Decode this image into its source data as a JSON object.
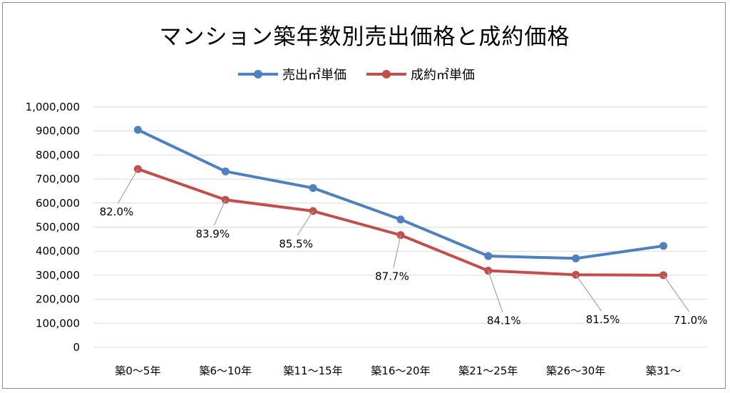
{
  "chart_data": {
    "type": "line",
    "title": "マンション築年数別売出価格と成約価格",
    "xlabel": "",
    "ylabel": "",
    "ylim": [
      0,
      1000000
    ],
    "yticks": [
      "0",
      "100,000",
      "200,000",
      "300,000",
      "400,000",
      "500,000",
      "600,000",
      "700,000",
      "800,000",
      "900,000",
      "1,000,000"
    ],
    "ytick_values": [
      0,
      100000,
      200000,
      300000,
      400000,
      500000,
      600000,
      700000,
      800000,
      900000,
      1000000
    ],
    "grid": true,
    "legend_position": "top-center",
    "categories": [
      "築0～5年",
      "築6～10年",
      "築11～15年",
      "築16～20年",
      "築21～25年",
      "築26～30年",
      "築31～"
    ],
    "series": [
      {
        "name": "売出㎡単価",
        "color": "#4f81bd",
        "values": [
          905000,
          732000,
          663000,
          532000,
          380000,
          370000,
          422000
        ]
      },
      {
        "name": "成約㎡単価",
        "color": "#c0504d",
        "values": [
          742000,
          614000,
          567000,
          467000,
          319000,
          302000,
          300000
        ]
      }
    ],
    "annotations": [
      {
        "category": "築0～5年",
        "text": "82.0%"
      },
      {
        "category": "築6～10年",
        "text": "83.9%"
      },
      {
        "category": "築11～15年",
        "text": "85.5%"
      },
      {
        "category": "築16～20年",
        "text": "87.7%"
      },
      {
        "category": "築21～25年",
        "text": "84.1%"
      },
      {
        "category": "築26～30年",
        "text": "81.5%"
      },
      {
        "category": "築31～",
        "text": "71.0%"
      }
    ]
  }
}
